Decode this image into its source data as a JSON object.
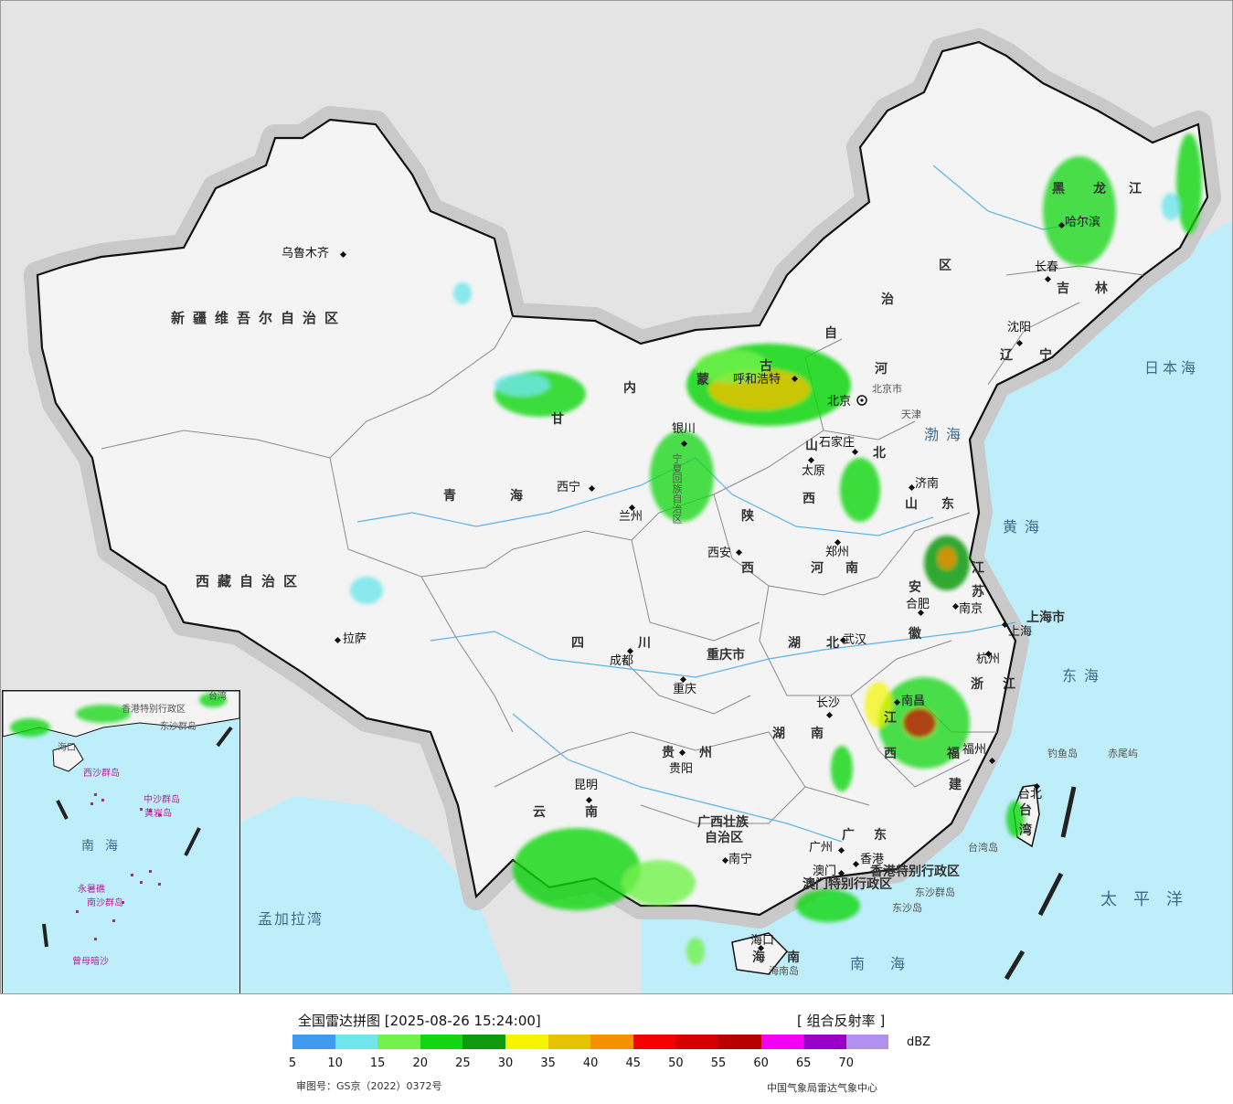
{
  "labels": {
    "provinces": [
      {
        "id": "xinjiang",
        "text": "新疆维吾尔自治区"
      },
      {
        "id": "xizang",
        "text": "西藏自治区"
      },
      {
        "id": "qinghai-1",
        "text": "青"
      },
      {
        "id": "qinghai-2",
        "text": "海"
      },
      {
        "id": "gansu",
        "text": "甘"
      },
      {
        "id": "neimeng-1",
        "text": "内"
      },
      {
        "id": "neimeng-2",
        "text": "蒙"
      },
      {
        "id": "neimeng-3",
        "text": "古"
      },
      {
        "id": "neimeng-4",
        "text": "自"
      },
      {
        "id": "neimeng-5",
        "text": "治"
      },
      {
        "id": "neimeng-6",
        "text": "区"
      },
      {
        "id": "heilongjiang-1",
        "text": "黑"
      },
      {
        "id": "heilongjiang-2",
        "text": "龙"
      },
      {
        "id": "heilongjiang-3",
        "text": "江"
      },
      {
        "id": "jilin-1",
        "text": "吉"
      },
      {
        "id": "jilin-2",
        "text": "林"
      },
      {
        "id": "liaoning-1",
        "text": "辽"
      },
      {
        "id": "liaoning-2",
        "text": "宁"
      },
      {
        "id": "hebei-1",
        "text": "河"
      },
      {
        "id": "hebei-2",
        "text": "北"
      },
      {
        "id": "shanxi-1",
        "text": "山"
      },
      {
        "id": "shanxi-2",
        "text": "西"
      },
      {
        "id": "shandong-1",
        "text": "山"
      },
      {
        "id": "shandong-2",
        "text": "东"
      },
      {
        "id": "shaanxi-1",
        "text": "陕"
      },
      {
        "id": "shaanxi-2",
        "text": "西"
      },
      {
        "id": "henan-1",
        "text": "河"
      },
      {
        "id": "henan-2",
        "text": "南"
      },
      {
        "id": "jiangsu-1",
        "text": "江"
      },
      {
        "id": "jiangsu-2",
        "text": "苏"
      },
      {
        "id": "anhui-1",
        "text": "安"
      },
      {
        "id": "anhui-2",
        "text": "徽"
      },
      {
        "id": "sichuan-1",
        "text": "四"
      },
      {
        "id": "sichuan-2",
        "text": "川"
      },
      {
        "id": "hubei-1",
        "text": "湖"
      },
      {
        "id": "hubei-2",
        "text": "北"
      },
      {
        "id": "zhejiang-1",
        "text": "浙"
      },
      {
        "id": "zhejiang-2",
        "text": "江"
      },
      {
        "id": "jiangxi-1",
        "text": "江"
      },
      {
        "id": "jiangxi-2",
        "text": "西"
      },
      {
        "id": "hunan-1",
        "text": "湖"
      },
      {
        "id": "hunan-2",
        "text": "南"
      },
      {
        "id": "fujian-1",
        "text": "福"
      },
      {
        "id": "fujian-2",
        "text": "建"
      },
      {
        "id": "guizhou-1",
        "text": "贵"
      },
      {
        "id": "guizhou-2",
        "text": "州"
      },
      {
        "id": "yunnan-1",
        "text": "云"
      },
      {
        "id": "yunnan-2",
        "text": "南"
      },
      {
        "id": "guangxi-1",
        "text": "广西壮族"
      },
      {
        "id": "guangxi-2",
        "text": "自治区"
      },
      {
        "id": "guangdong-1",
        "text": "广"
      },
      {
        "id": "guangdong-2",
        "text": "东"
      },
      {
        "id": "hainan-1",
        "text": "海"
      },
      {
        "id": "hainan-2",
        "text": "南"
      },
      {
        "id": "taiwan-1",
        "text": "台"
      },
      {
        "id": "taiwan-2",
        "text": "湾"
      },
      {
        "id": "chongqing",
        "text": "重庆市"
      },
      {
        "id": "shanghai",
        "text": "上海市"
      },
      {
        "id": "tianjin",
        "text": "天津"
      },
      {
        "id": "ningxia",
        "text": "宁夏回族自治区"
      },
      {
        "id": "hk-sar",
        "text": "香港特别行政区"
      },
      {
        "id": "macau-sar",
        "text": "澳门特别行政区"
      }
    ],
    "cities": [
      {
        "id": "urumqi",
        "text": "乌鲁木齐"
      },
      {
        "id": "lhasa",
        "text": "拉萨"
      },
      {
        "id": "xining",
        "text": "西宁"
      },
      {
        "id": "lanzhou",
        "text": "兰州"
      },
      {
        "id": "yinchuan",
        "text": "银川"
      },
      {
        "id": "hohhot",
        "text": "呼和浩特"
      },
      {
        "id": "beijing",
        "text": "北京"
      },
      {
        "id": "beijing-city",
        "text": "北京市"
      },
      {
        "id": "shijiazhuang",
        "text": "石家庄"
      },
      {
        "id": "taiyuan",
        "text": "太原"
      },
      {
        "id": "jinan",
        "text": "济南"
      },
      {
        "id": "xian",
        "text": "西安"
      },
      {
        "id": "zhengzhou",
        "text": "郑州"
      },
      {
        "id": "hefei",
        "text": "合肥"
      },
      {
        "id": "nanjing",
        "text": "南京"
      },
      {
        "id": "shanghai-city",
        "text": "上海"
      },
      {
        "id": "hangzhou",
        "text": "杭州"
      },
      {
        "id": "wuhan",
        "text": "武汉"
      },
      {
        "id": "chengdu",
        "text": "成都"
      },
      {
        "id": "chongqing-city",
        "text": "重庆"
      },
      {
        "id": "changsha",
        "text": "长沙"
      },
      {
        "id": "nanchang",
        "text": "南昌"
      },
      {
        "id": "fuzhou",
        "text": "福州"
      },
      {
        "id": "guiyang",
        "text": "贵阳"
      },
      {
        "id": "kunming",
        "text": "昆明"
      },
      {
        "id": "nanning",
        "text": "南宁"
      },
      {
        "id": "guangzhou",
        "text": "广州"
      },
      {
        "id": "hongkong",
        "text": "香港"
      },
      {
        "id": "macau",
        "text": "澳门"
      },
      {
        "id": "haikou",
        "text": "海口"
      },
      {
        "id": "taipei",
        "text": "台北"
      },
      {
        "id": "harbin",
        "text": "哈尔滨"
      },
      {
        "id": "changchun",
        "text": "长春"
      },
      {
        "id": "shenyang",
        "text": "沈阳"
      }
    ],
    "seas": [
      {
        "id": "bohai",
        "text": "渤海"
      },
      {
        "id": "huanghai",
        "text": "黄海"
      },
      {
        "id": "donghai",
        "text": "东海"
      },
      {
        "id": "nanhai",
        "text": "南海"
      },
      {
        "id": "riben",
        "text": "日本海"
      },
      {
        "id": "taipingyang",
        "text": "太平洋"
      },
      {
        "id": "mengjiala",
        "text": "孟加拉湾"
      }
    ],
    "islands": [
      {
        "id": "diaoyu",
        "text": "钓鱼岛"
      },
      {
        "id": "chiwei",
        "text": "赤尾屿"
      },
      {
        "id": "taiwan-island",
        "text": "台湾岛"
      },
      {
        "id": "hainan-island",
        "text": "海南岛"
      },
      {
        "id": "dongsha",
        "text": "东沙群岛"
      },
      {
        "id": "dongsha-dao",
        "text": "东沙岛"
      }
    ]
  },
  "inset": {
    "labels": [
      {
        "id": "nanhai",
        "text": "南海"
      },
      {
        "id": "haikou",
        "text": "海口"
      },
      {
        "id": "xisha",
        "text": "西沙群岛"
      },
      {
        "id": "zhongsha",
        "text": "中沙群岛"
      },
      {
        "id": "huangyan",
        "text": "黄岩岛"
      },
      {
        "id": "yongshu",
        "text": "永暑礁"
      },
      {
        "id": "nansha",
        "text": "南沙群岛"
      },
      {
        "id": "zengmu",
        "text": "曾母暗沙"
      },
      {
        "id": "hk",
        "text": "香港特别行政区"
      },
      {
        "id": "dongsha",
        "text": "东沙群岛"
      },
      {
        "id": "taiwan",
        "text": "台湾"
      }
    ]
  },
  "legend": {
    "title": "全国雷达拼图 [2025-08-26 15:24:00]",
    "product": "[ 组合反射率 ]",
    "unit": "dBZ",
    "ticks": [
      "5",
      "10",
      "15",
      "20",
      "25",
      "30",
      "35",
      "40",
      "45",
      "50",
      "55",
      "60",
      "65",
      "70"
    ],
    "colors": [
      "#3e9bf0",
      "#6ee6ec",
      "#72f24a",
      "#13d613",
      "#0d9a0d",
      "#f5f500",
      "#e5c300",
      "#f59000",
      "#f50000",
      "#d60000",
      "#b70000",
      "#f500f5",
      "#9a00c7",
      "#b190f0"
    ],
    "approval": "审图号：GS京（2022）0372号",
    "agency": "中国气象局雷达气象中心"
  }
}
